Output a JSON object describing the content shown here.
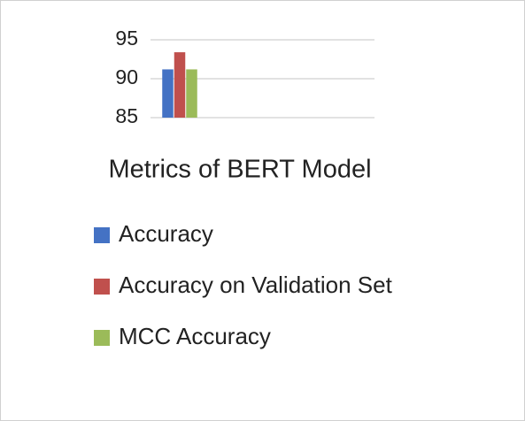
{
  "chart_data": {
    "type": "bar",
    "title": "Metrics of BERT Model",
    "categories": [
      null
    ],
    "series": [
      {
        "name": "Accuracy",
        "color": "#4472c4",
        "values": [
          91.2
        ]
      },
      {
        "name": "Accuracy on Validation Set",
        "color": "#c0504d",
        "values": [
          93.4
        ]
      },
      {
        "name": "MCC Accuracy",
        "color": "#9bbb59",
        "values": [
          91.2
        ]
      }
    ],
    "ylim": [
      85,
      95
    ],
    "yticks": [
      85,
      90,
      95
    ],
    "grid": true,
    "legend": "bottom"
  }
}
